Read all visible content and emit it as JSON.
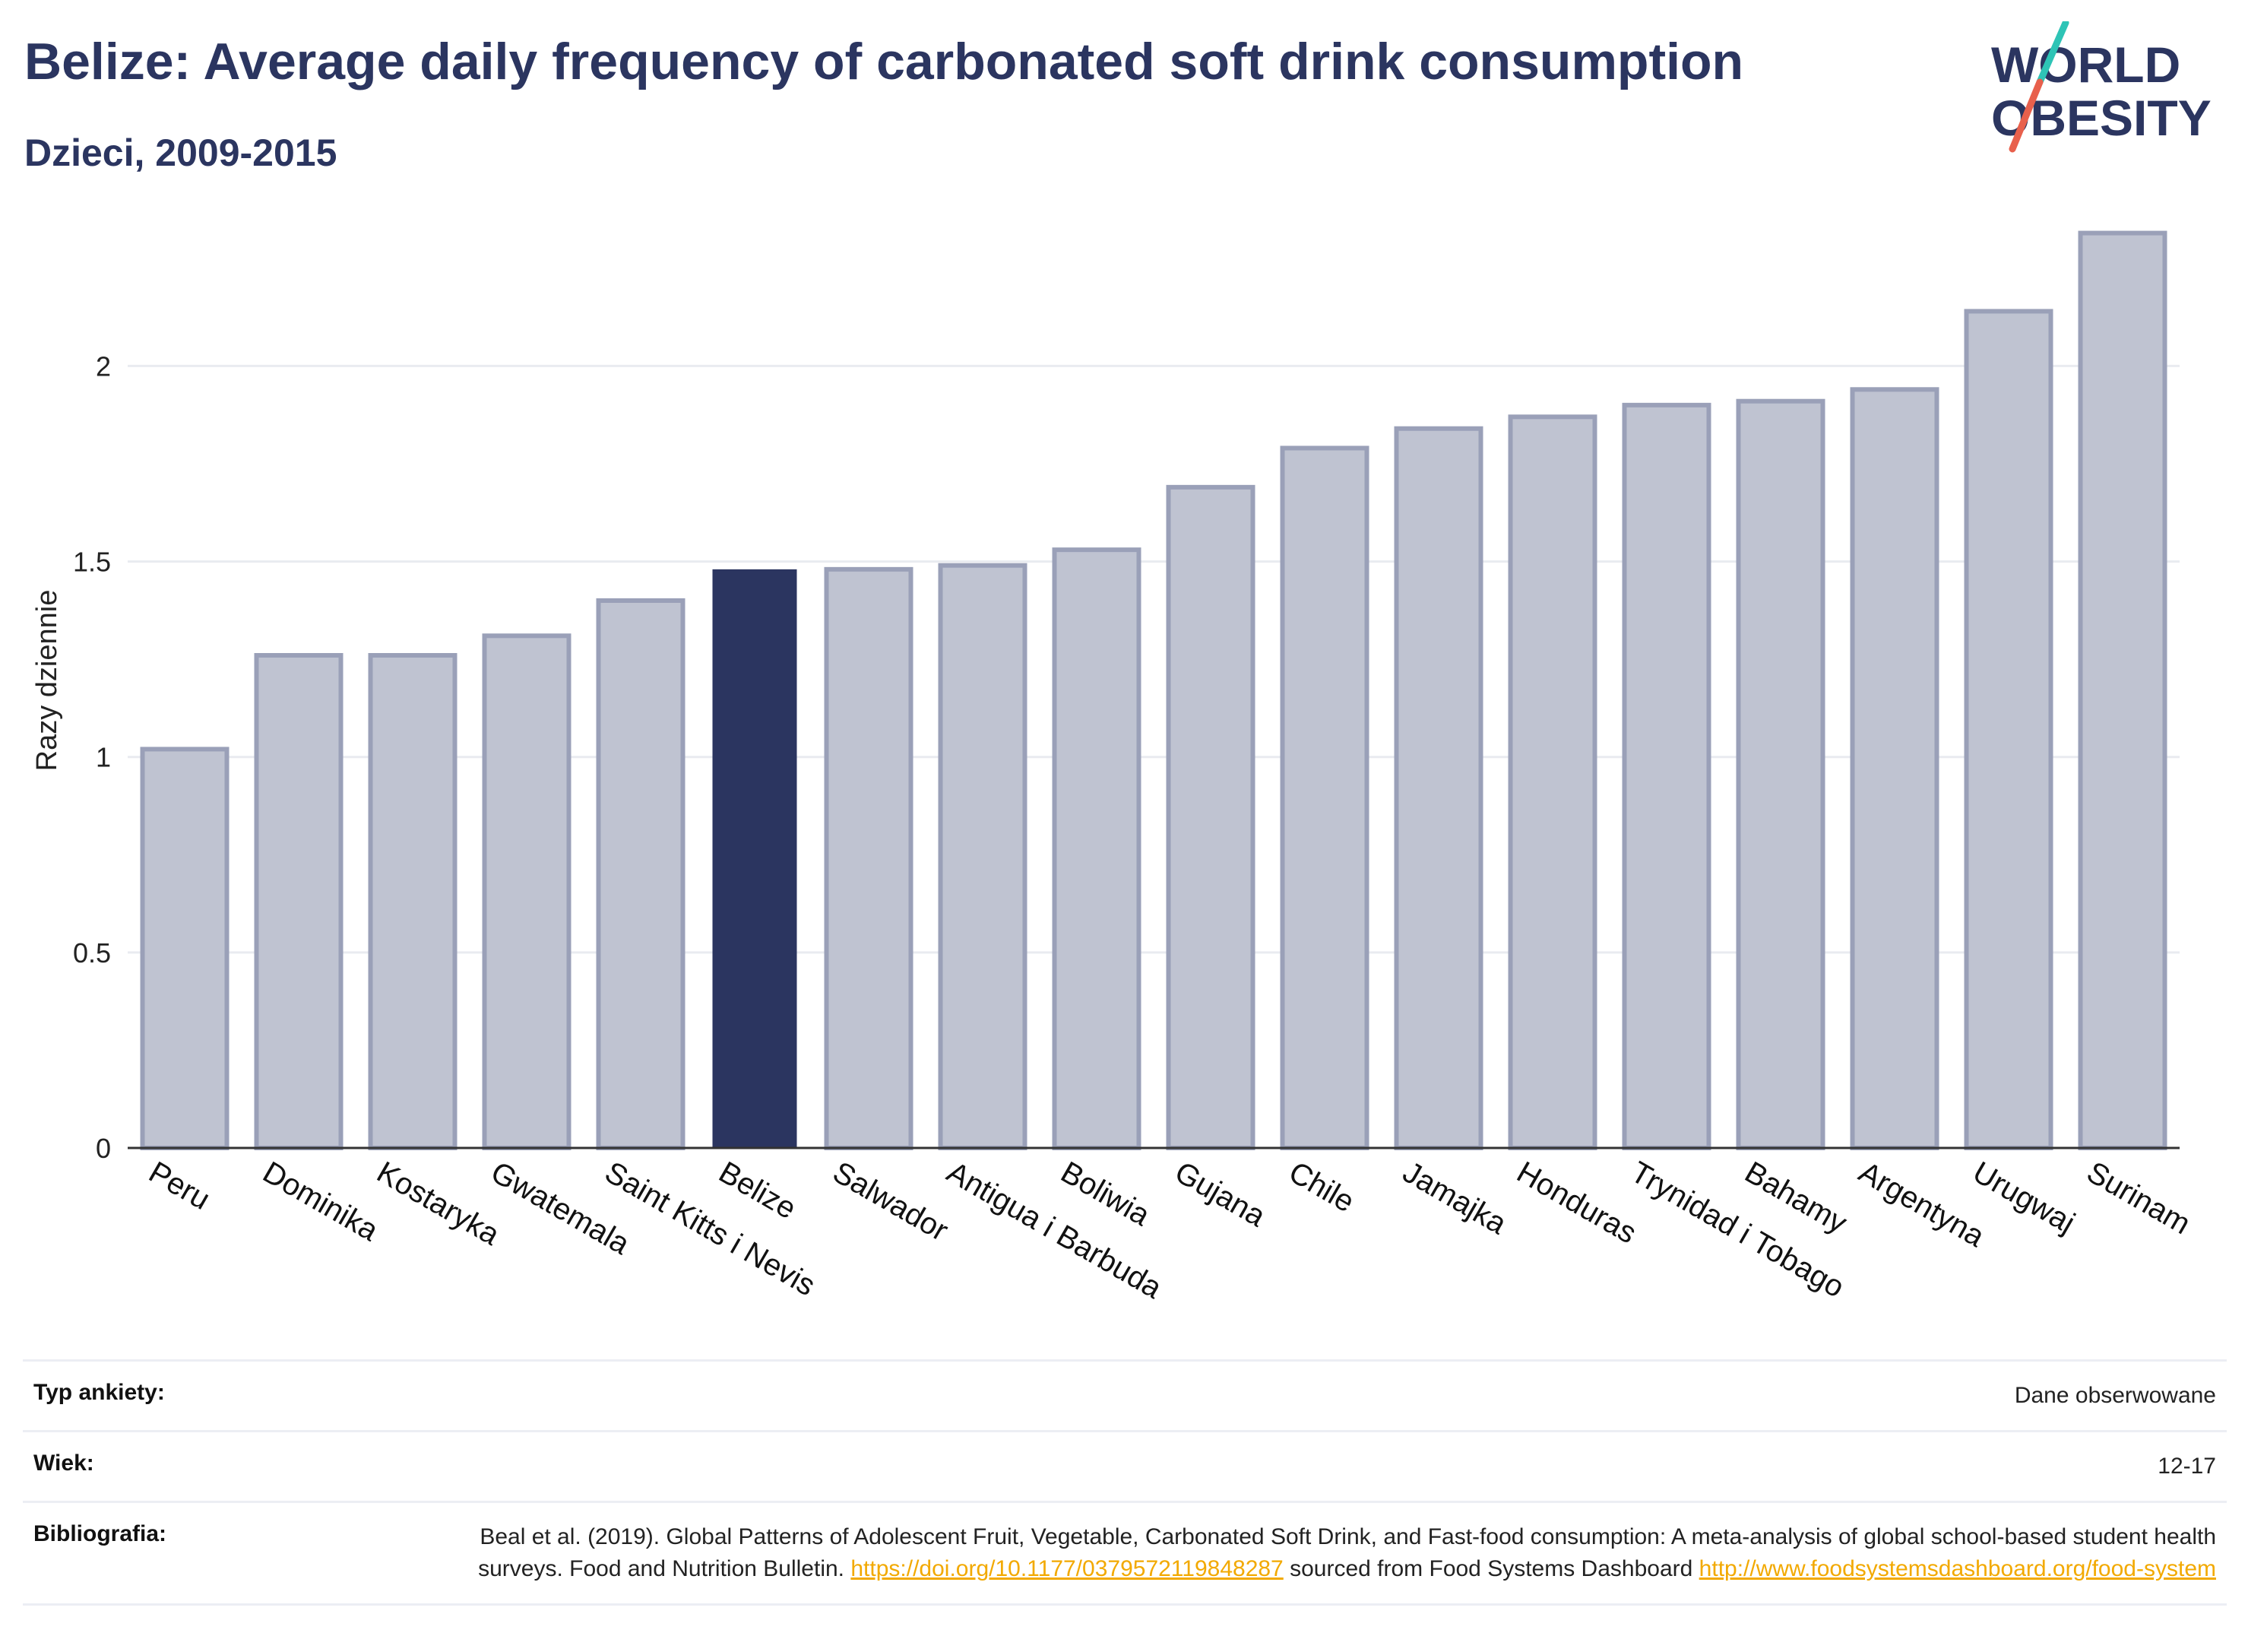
{
  "header": {
    "title": "Belize: Average daily frequency of carbonated soft drink consumption",
    "subtitle": "Dzieci, 2009-2015"
  },
  "logo": {
    "line1": "WORLD",
    "line2": "OBESITY",
    "text_color": "#2b3560",
    "slash_colors": [
      "#2ec4b6",
      "#e8604c"
    ]
  },
  "colors": {
    "highlight": "#2b3560",
    "bar": "#bfc3d1",
    "bar_stroke": "#9aa0b8",
    "grid": "#e9ebf0",
    "axis": "#333333"
  },
  "chart_data": {
    "type": "bar",
    "categories": [
      "Peru",
      "Dominika",
      "Kostaryka",
      "Gwatemala",
      "Saint Kitts i Nevis",
      "Belize",
      "Salwador",
      "Antigua i Barbuda",
      "Boliwia",
      "Gujana",
      "Chile",
      "Jamajka",
      "Honduras",
      "Trynidad i Tobago",
      "Bahamy",
      "Argentyna",
      "Urugwaj",
      "Surinam"
    ],
    "values": [
      1.02,
      1.26,
      1.26,
      1.31,
      1.4,
      1.48,
      1.48,
      1.49,
      1.53,
      1.69,
      1.79,
      1.84,
      1.87,
      1.9,
      1.91,
      1.94,
      2.14,
      2.34
    ],
    "highlight": "Belize",
    "ylabel": "Razy dziennie",
    "xlabel": "",
    "ylim": [
      0,
      2.45
    ],
    "yticks": [
      0,
      0.5,
      1,
      1.5,
      2
    ],
    "ytick_labels": [
      "0",
      "0.5",
      "1",
      "1.5",
      "2"
    ],
    "grid": true
  },
  "meta": {
    "survey_type_label": "Typ ankiety:",
    "survey_type_value": "Dane obserwowane",
    "age_label": "Wiek:",
    "age_value": "12-17",
    "bibliography_label": "Bibliografia:",
    "bibliography_text_1": "Beal et al. (2019). Global Patterns of Adolescent Fruit, Vegetable, Carbonated Soft Drink, and Fast-food consumption: A meta-analysis of global school-based student health surveys. Food and Nutrition Bulletin.",
    "bibliography_link_1": "https://doi.org/10.1177/0379572119848287",
    "bibliography_text_2": "sourced from Food Systems Dashboard",
    "bibliography_link_2": "http://www.foodsystemsdashboard.org/food-system"
  }
}
